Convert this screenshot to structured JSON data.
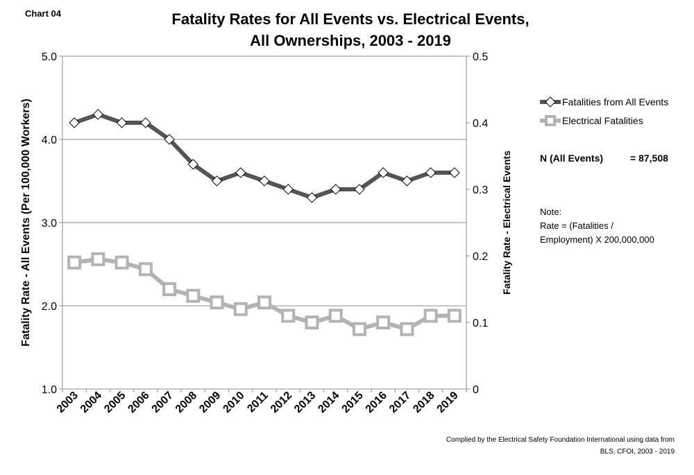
{
  "header": {
    "chart_label": "Chart 04",
    "title_line1": "Fatality Rates for All Events vs. Electrical Events,",
    "title_line2": "All Ownerships, 2003 - 2019"
  },
  "stats": {
    "n_label": "N (All Events)",
    "n_value": "= 87,508"
  },
  "note": {
    "line1": "Note:",
    "line2": "Rate = (Fatalities /",
    "line3": "Employment) X 200,000,000"
  },
  "credit": {
    "line1": "Complied by the Electrical Safety Foundation International using data from",
    "line2": "BLS, CFOI, 2003 - 2019"
  },
  "colors": {
    "all_events": "#555555",
    "electrical": "#b3b3b3",
    "grid": "#8c8c8c",
    "marker_fill": "#ffffff"
  },
  "chart_data": {
    "type": "line",
    "categories": [
      "2003",
      "2004",
      "2005",
      "2006",
      "2007",
      "2008",
      "2009",
      "2010",
      "2011",
      "2012",
      "2013",
      "2014",
      "2015",
      "2016",
      "2017",
      "2018",
      "2019"
    ],
    "y_left": {
      "label": "Fatality Rate - All Events (Per 100,000 Workers)",
      "range": [
        1.0,
        5.0
      ],
      "ticks": [
        "1.0",
        "2.0",
        "3.0",
        "4.0",
        "5.0"
      ]
    },
    "y_right": {
      "label": "Fatality Rate - Electrical Events",
      "range": [
        0,
        0.5
      ],
      "ticks": [
        "0",
        "0.1",
        "0.2",
        "0.3",
        "0.4",
        "0.5"
      ]
    },
    "grid": true,
    "legend_position": "right",
    "series": [
      {
        "name": "Fatalities from All Events",
        "axis": "left",
        "marker": "diamond",
        "values": [
          4.2,
          4.3,
          4.2,
          4.2,
          4.0,
          3.7,
          3.5,
          3.6,
          3.5,
          3.4,
          3.3,
          3.4,
          3.4,
          3.6,
          3.5,
          3.6,
          3.6
        ]
      },
      {
        "name": "Electrical Fatalities",
        "axis": "right",
        "marker": "square",
        "values": [
          0.19,
          0.195,
          0.19,
          0.18,
          0.15,
          0.14,
          0.13,
          0.12,
          0.13,
          0.11,
          0.1,
          0.11,
          0.09,
          0.1,
          0.09,
          0.11,
          0.11
        ]
      }
    ]
  }
}
